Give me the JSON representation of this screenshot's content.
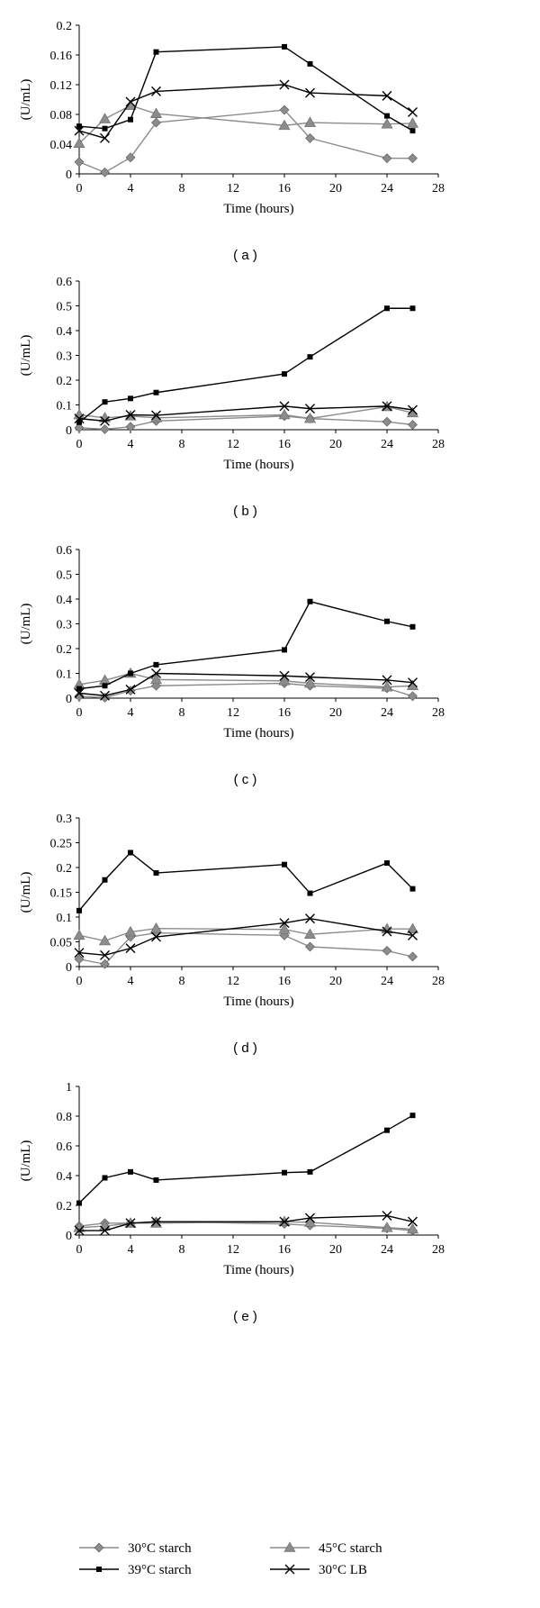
{
  "legend": {
    "items": [
      {
        "label": "30°C starch",
        "marker": "diamond",
        "color": "#8c8c8c"
      },
      {
        "label": "45°C starch",
        "marker": "triangle",
        "color": "#8c8c8c"
      },
      {
        "label": "39°C starch",
        "marker": "square",
        "color": "#000000"
      },
      {
        "label": "30°C LB",
        "marker": "cross",
        "color": "#000000"
      }
    ]
  },
  "chart_data": [
    {
      "type": "line",
      "panel_label": "( a )",
      "xlabel": "Time (hours)",
      "ylabel": "(U/mL)",
      "xlim": [
        0,
        28
      ],
      "ylim": [
        0,
        0.2
      ],
      "x_ticks": [
        "0",
        "4",
        "8",
        "12",
        "16",
        "20",
        "24",
        "28"
      ],
      "y_ticks": [
        "0",
        "0.04",
        "0.08",
        "0.12",
        "0.16",
        "0.2"
      ],
      "series": [
        {
          "name": "30°C starch",
          "x": [
            0,
            2,
            4,
            6,
            16,
            18,
            24,
            26
          ],
          "y": [
            0.016,
            0.002,
            0.022,
            0.069,
            0.086,
            0.048,
            0.021,
            0.021
          ]
        },
        {
          "name": "45°C starch",
          "x": [
            0,
            2,
            4,
            6,
            16,
            18,
            24,
            26
          ],
          "y": [
            0.041,
            0.074,
            0.092,
            0.081,
            0.065,
            0.069,
            0.067,
            0.068
          ]
        },
        {
          "name": "39°C starch",
          "x": [
            0,
            2,
            4,
            6,
            16,
            18,
            24,
            26
          ],
          "y": [
            0.064,
            0.061,
            0.073,
            0.164,
            0.171,
            0.148,
            0.078,
            0.058
          ]
        },
        {
          "name": "30°C LB",
          "x": [
            0,
            2,
            4,
            6,
            16,
            18,
            24,
            26
          ],
          "y": [
            0.058,
            0.048,
            0.097,
            0.111,
            0.12,
            0.109,
            0.105,
            0.083
          ]
        }
      ]
    },
    {
      "type": "line",
      "panel_label": "( b )",
      "xlabel": "Time (hours)",
      "ylabel": "(U/mL)",
      "xlim": [
        0,
        28
      ],
      "ylim": [
        0,
        0.6
      ],
      "x_ticks": [
        "0",
        "4",
        "8",
        "12",
        "16",
        "20",
        "24",
        "28"
      ],
      "y_ticks": [
        "0",
        "0.1",
        "0.2",
        "0.3",
        "0.4",
        "0.5",
        "0.6"
      ],
      "series": [
        {
          "name": "30°C starch",
          "x": [
            0,
            2,
            4,
            6,
            16,
            18,
            24,
            26
          ],
          "y": [
            0.008,
            0.002,
            0.012,
            0.035,
            0.055,
            0.045,
            0.032,
            0.02
          ]
        },
        {
          "name": "45°C starch",
          "x": [
            0,
            2,
            4,
            6,
            16,
            18,
            24,
            26
          ],
          "y": [
            0.06,
            0.048,
            0.055,
            0.048,
            0.06,
            0.045,
            0.093,
            0.068
          ]
        },
        {
          "name": "39°C starch",
          "x": [
            0,
            2,
            4,
            6,
            16,
            18,
            24,
            26
          ],
          "y": [
            0.03,
            0.112,
            0.126,
            0.15,
            0.225,
            0.294,
            0.49,
            0.49
          ]
        },
        {
          "name": "30°C LB",
          "x": [
            0,
            2,
            4,
            6,
            16,
            18,
            24,
            26
          ],
          "y": [
            0.045,
            0.035,
            0.06,
            0.058,
            0.095,
            0.085,
            0.095,
            0.08
          ]
        }
      ]
    },
    {
      "type": "line",
      "panel_label": "( c )",
      "xlabel": "Time (hours)",
      "ylabel": "(U/mL)",
      "xlim": [
        0,
        28
      ],
      "ylim": [
        0,
        0.6
      ],
      "x_ticks": [
        "0",
        "4",
        "8",
        "12",
        "16",
        "20",
        "24",
        "28"
      ],
      "y_ticks": [
        "0",
        "0.1",
        "0.2",
        "0.3",
        "0.4",
        "0.5",
        "0.6"
      ],
      "series": [
        {
          "name": "30°C starch",
          "x": [
            0,
            2,
            4,
            6,
            16,
            18,
            24,
            26
          ],
          "y": [
            0.008,
            0.002,
            0.03,
            0.05,
            0.06,
            0.05,
            0.04,
            0.008
          ]
        },
        {
          "name": "45°C starch",
          "x": [
            0,
            2,
            4,
            6,
            16,
            18,
            24,
            26
          ],
          "y": [
            0.055,
            0.072,
            0.1,
            0.075,
            0.07,
            0.06,
            0.045,
            0.05
          ]
        },
        {
          "name": "39°C starch",
          "x": [
            0,
            2,
            4,
            6,
            16,
            18,
            24,
            26
          ],
          "y": [
            0.038,
            0.05,
            0.1,
            0.135,
            0.195,
            0.39,
            0.31,
            0.288
          ]
        },
        {
          "name": "30°C LB",
          "x": [
            0,
            2,
            4,
            6,
            16,
            18,
            24,
            26
          ],
          "y": [
            0.02,
            0.01,
            0.035,
            0.1,
            0.09,
            0.085,
            0.073,
            0.063
          ]
        }
      ]
    },
    {
      "type": "line",
      "panel_label": "( d )",
      "xlabel": "Time (hours)",
      "ylabel": "(U/mL)",
      "xlim": [
        0,
        28
      ],
      "ylim": [
        0,
        0.3
      ],
      "x_ticks": [
        "0",
        "4",
        "8",
        "12",
        "16",
        "20",
        "24",
        "28"
      ],
      "y_ticks": [
        "0",
        "0.05",
        "0.1",
        "0.15",
        "0.2",
        "0.25",
        "0.3"
      ],
      "series": [
        {
          "name": "30°C starch",
          "x": [
            0,
            2,
            4,
            6,
            16,
            18,
            24,
            26
          ],
          "y": [
            0.015,
            0.005,
            0.06,
            0.068,
            0.063,
            0.04,
            0.032,
            0.02
          ]
        },
        {
          "name": "45°C starch",
          "x": [
            0,
            2,
            4,
            6,
            16,
            18,
            24,
            26
          ],
          "y": [
            0.063,
            0.052,
            0.07,
            0.077,
            0.075,
            0.065,
            0.076,
            0.076
          ]
        },
        {
          "name": "39°C starch",
          "x": [
            0,
            2,
            4,
            6,
            16,
            18,
            24,
            26
          ],
          "y": [
            0.113,
            0.175,
            0.23,
            0.189,
            0.206,
            0.148,
            0.209,
            0.157
          ]
        },
        {
          "name": "30°C LB",
          "x": [
            0,
            2,
            4,
            6,
            16,
            18,
            24,
            26
          ],
          "y": [
            0.028,
            0.023,
            0.037,
            0.06,
            0.088,
            0.097,
            0.071,
            0.063
          ]
        }
      ]
    },
    {
      "type": "line",
      "panel_label": "( e )",
      "xlabel": "Time (hours)",
      "ylabel": "(U/mL)",
      "xlim": [
        0,
        28
      ],
      "ylim": [
        0,
        1
      ],
      "x_ticks": [
        "0",
        "4",
        "8",
        "12",
        "16",
        "20",
        "24",
        "28"
      ],
      "y_ticks": [
        "0",
        "0.2",
        "0.4",
        "0.6",
        "0.8",
        "1"
      ],
      "series": [
        {
          "name": "30°C starch",
          "x": [
            0,
            2,
            4,
            6,
            16,
            18,
            24,
            26
          ],
          "y": [
            0.06,
            0.08,
            0.08,
            0.09,
            0.075,
            0.065,
            0.045,
            0.03
          ]
        },
        {
          "name": "45°C starch",
          "x": [
            0,
            2,
            4,
            6,
            16,
            18,
            24,
            26
          ],
          "y": [
            0.05,
            0.06,
            0.08,
            0.08,
            0.09,
            0.085,
            0.05,
            0.04
          ]
        },
        {
          "name": "39°C starch",
          "x": [
            0,
            2,
            4,
            6,
            16,
            18,
            24,
            26
          ],
          "y": [
            0.215,
            0.385,
            0.425,
            0.37,
            0.42,
            0.425,
            0.705,
            0.805
          ]
        },
        {
          "name": "30°C LB",
          "x": [
            0,
            2,
            4,
            6,
            16,
            18,
            24,
            26
          ],
          "y": [
            0.03,
            0.03,
            0.08,
            0.09,
            0.09,
            0.115,
            0.13,
            0.09
          ]
        }
      ]
    }
  ]
}
